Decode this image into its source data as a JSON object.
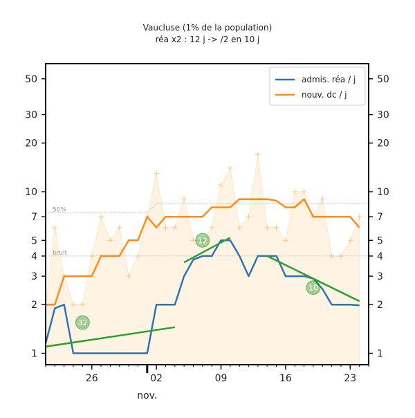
{
  "chart_data": {
    "type": "line",
    "title": "Vaucluse (1% de la population)",
    "subtitle": "réa x2 : 12 j -> /2 en 10 j",
    "y_scale": "log",
    "ylim": [
      0.85,
      62
    ],
    "xlim": [
      "2020-10-21",
      "2020-11-25"
    ],
    "x_ticks": [
      {
        "date": "2020-10-26",
        "label": "26"
      },
      {
        "date": "2020-11-02",
        "label": "02"
      },
      {
        "date": "2020-11-09",
        "label": "09"
      },
      {
        "date": "2020-11-16",
        "label": "16"
      },
      {
        "date": "2020-11-23",
        "label": "23"
      }
    ],
    "month_label": {
      "date": "2020-11-01",
      "label": "nov."
    },
    "y_ticks": [
      1,
      2,
      3,
      4,
      5,
      7,
      10,
      20,
      30,
      50
    ],
    "y_tick_labels": [
      "1",
      "2",
      "3",
      "4",
      "5",
      "7",
      "10",
      "20",
      "30",
      "50"
    ],
    "legend": {
      "placement": "top-right",
      "entries": [
        {
          "label": "admis. réa / j",
          "color": "#2c74b4"
        },
        {
          "label": "nouv. dc / j",
          "color": "#ff8c1a"
        }
      ]
    },
    "reference_lines": [
      {
        "label": "50%",
        "points": [
          [
            "2020-10-21",
            7.4
          ],
          [
            "2020-11-01",
            7.4
          ],
          [
            "2020-11-02",
            8.4
          ],
          [
            "2020-11-25",
            8.4
          ]
        ]
      },
      {
        "label": "bruit",
        "points": [
          [
            "2020-10-21",
            4.0
          ],
          [
            "2020-11-09",
            4.0
          ],
          [
            "2020-11-25",
            4.0
          ]
        ]
      }
    ],
    "series": [
      {
        "name": "admis. réa / j",
        "color": "#2c74b4",
        "x": [
          "2020-10-21",
          "2020-10-22",
          "2020-10-23",
          "2020-10-24",
          "2020-10-25",
          "2020-10-26",
          "2020-10-27",
          "2020-10-28",
          "2020-10-29",
          "2020-10-30",
          "2020-10-31",
          "2020-11-01",
          "2020-11-02",
          "2020-11-03",
          "2020-11-04",
          "2020-11-05",
          "2020-11-06",
          "2020-11-07",
          "2020-11-08",
          "2020-11-09",
          "2020-11-10",
          "2020-11-11",
          "2020-11-12",
          "2020-11-13",
          "2020-11-14",
          "2020-11-15",
          "2020-11-16",
          "2020-11-17",
          "2020-11-18",
          "2020-11-19",
          "2020-11-20",
          "2020-11-21",
          "2020-11-22",
          "2020-11-23",
          "2020-11-24"
        ],
        "values": [
          1.15,
          1.9,
          2.0,
          1.0,
          1.0,
          1.0,
          1.0,
          1.0,
          1.0,
          1.0,
          1.0,
          1.0,
          2.0,
          2.0,
          2.0,
          3.0,
          3.8,
          4.0,
          4.0,
          5.0,
          5.0,
          4.0,
          3.0,
          4.0,
          4.0,
          4.0,
          3.0,
          3.0,
          3.0,
          2.9,
          2.5,
          2.0,
          2.0,
          2.0,
          1.98
        ]
      },
      {
        "name": "nouv. dc / j",
        "color": "#ff8c1a",
        "x": [
          "2020-10-21",
          "2020-10-22",
          "2020-10-23",
          "2020-10-24",
          "2020-10-25",
          "2020-10-26",
          "2020-10-27",
          "2020-10-28",
          "2020-10-29",
          "2020-10-30",
          "2020-10-31",
          "2020-11-01",
          "2020-11-02",
          "2020-11-03",
          "2020-11-04",
          "2020-11-05",
          "2020-11-06",
          "2020-11-07",
          "2020-11-08",
          "2020-11-09",
          "2020-11-10",
          "2020-11-11",
          "2020-11-12",
          "2020-11-13",
          "2020-11-14",
          "2020-11-15",
          "2020-11-16",
          "2020-11-17",
          "2020-11-18",
          "2020-11-19",
          "2020-11-20",
          "2020-11-21",
          "2020-11-22",
          "2020-11-23",
          "2020-11-24"
        ],
        "values": [
          2.0,
          2.0,
          3.0,
          3.0,
          3.0,
          3.0,
          4.0,
          4.0,
          4.0,
          5.0,
          5.0,
          7.0,
          6.0,
          7.0,
          7.0,
          7.0,
          7.0,
          7.0,
          8.0,
          8.0,
          8.0,
          9.0,
          9.0,
          9.0,
          9.0,
          8.8,
          8.0,
          8.0,
          9.0,
          7.0,
          7.0,
          7.0,
          7.0,
          7.0,
          6.0
        ]
      }
    ],
    "daily_deaths_markers": {
      "color": "#ffb347",
      "x": [
        "2020-10-21",
        "2020-10-22",
        "2020-10-23",
        "2020-10-24",
        "2020-10-25",
        "2020-10-26",
        "2020-10-27",
        "2020-10-28",
        "2020-10-29",
        "2020-10-30",
        "2020-10-31",
        "2020-11-01",
        "2020-11-02",
        "2020-11-03",
        "2020-11-04",
        "2020-11-05",
        "2020-11-06",
        "2020-11-07",
        "2020-11-08",
        "2020-11-09",
        "2020-11-10",
        "2020-11-11",
        "2020-11-12",
        "2020-11-13",
        "2020-11-14",
        "2020-11-15",
        "2020-11-16",
        "2020-11-17",
        "2020-11-18",
        "2020-11-19",
        "2020-11-20",
        "2020-11-21",
        "2020-11-22",
        "2020-11-23",
        "2020-11-24"
      ],
      "values": [
        2,
        6,
        3,
        2,
        2,
        4,
        7,
        5,
        6,
        3,
        4,
        7,
        13,
        6,
        6,
        9,
        5,
        5,
        6,
        11,
        14,
        6,
        7,
        17,
        6,
        6,
        5,
        10,
        10,
        7,
        9,
        4,
        4,
        5,
        7
      ]
    },
    "fits": [
      {
        "color": "#2ca02c",
        "label": "32",
        "x": [
          "2020-10-21",
          "2020-11-04"
        ],
        "values": [
          1.1,
          1.45
        ],
        "badge_at": [
          "2020-10-25",
          1.55
        ]
      },
      {
        "color": "#2ca02c",
        "label": "12",
        "x": [
          "2020-11-05",
          "2020-11-10"
        ],
        "values": [
          3.65,
          5.2
        ],
        "badge_at": [
          "2020-11-07",
          5.0
        ]
      },
      {
        "color": "#2ca02c",
        "label": "10",
        "x": [
          "2020-11-14",
          "2020-11-24"
        ],
        "values": [
          4.0,
          2.1
        ],
        "badge_at": [
          "2020-11-19",
          2.55
        ]
      }
    ]
  }
}
